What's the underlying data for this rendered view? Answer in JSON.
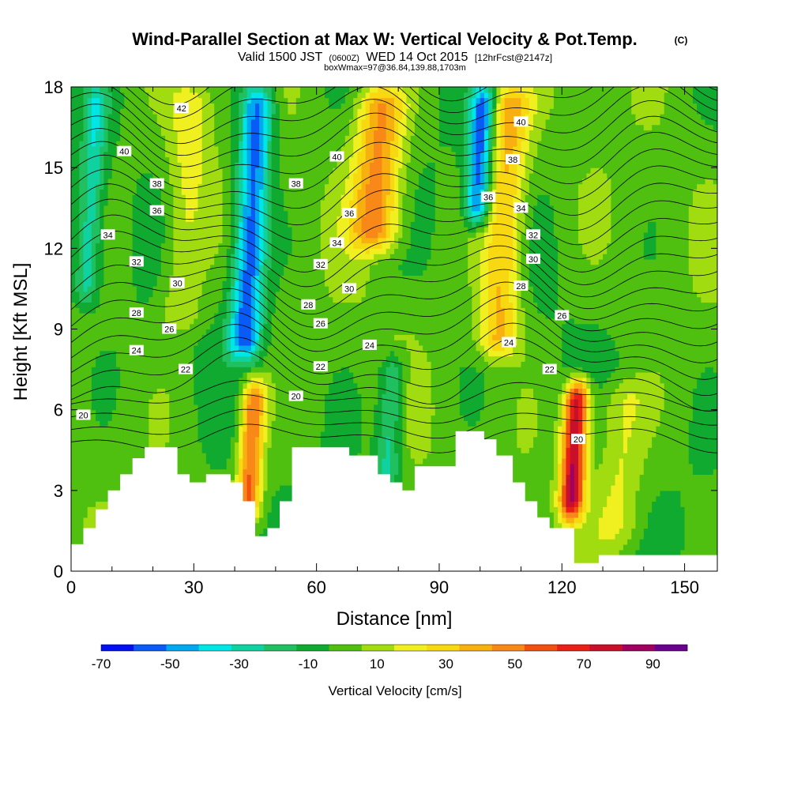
{
  "chart_data": {
    "type": "heatmap",
    "title": "Wind-Parallel Section at Max W: Vertical Velocity & Pot.Temp.",
    "title_mark": "(C)",
    "subtitle": {
      "valid": "Valid 1500 JST",
      "utc": "(0600Z)",
      "date": "WED 14 Oct 2015",
      "fcst": "[12hrFcst@2147z]"
    },
    "boxline": "boxWmax=97@36.84,139.88,1703m",
    "xlabel": "Distance [nm]",
    "ylabel": "Height [Kft MSL]",
    "xlim": [
      0,
      158
    ],
    "ylim": [
      0,
      18
    ],
    "xticks": [
      0,
      30,
      60,
      90,
      120,
      150
    ],
    "yticks": [
      0,
      3,
      6,
      9,
      12,
      15,
      18
    ],
    "colorbar": {
      "label": "Vertical Velocity [cm/s]",
      "levels": [
        -70,
        -60,
        -50,
        -40,
        -30,
        -20,
        -10,
        0,
        10,
        20,
        30,
        40,
        50,
        60,
        70,
        80,
        90,
        100
      ],
      "tick_labels": [
        "-70",
        "-50",
        "-30",
        "-10",
        "10",
        "30",
        "50",
        "70",
        "90"
      ],
      "tick_values": [
        -70,
        -50,
        -30,
        -10,
        10,
        30,
        50,
        70,
        90
      ],
      "colors": [
        "#0010f0",
        "#0a5af5",
        "#00a8f0",
        "#00e6e6",
        "#10d2a0",
        "#20c060",
        "#10aa30",
        "#50c010",
        "#a0dc10",
        "#f0f020",
        "#f8d810",
        "#f8b010",
        "#f88818",
        "#f05010",
        "#e82018",
        "#c8102a",
        "#a00060",
        "#6a0090"
      ]
    },
    "terrain_profile": {
      "x": [
        0,
        3,
        3,
        6,
        6,
        9,
        9,
        12,
        12,
        15,
        15,
        18,
        18,
        21,
        21,
        26,
        26,
        29,
        29,
        33,
        33,
        39,
        39,
        42,
        42,
        45,
        45,
        48,
        48,
        51,
        51,
        54,
        54,
        57,
        57,
        68,
        68,
        75,
        75,
        78,
        78,
        81,
        81,
        84,
        84,
        94,
        94,
        101,
        101,
        104,
        104,
        108,
        108,
        111,
        111,
        114,
        114,
        117,
        117,
        123,
        123,
        126,
        126,
        129,
        129,
        136,
        136,
        158
      ],
      "y": [
        1.0,
        1.0,
        1.6,
        1.6,
        2.3,
        2.3,
        3.0,
        3.0,
        3.6,
        3.6,
        4.2,
        4.2,
        4.6,
        4.6,
        4.6,
        4.6,
        3.6,
        3.6,
        3.3,
        3.3,
        3.6,
        3.6,
        3.3,
        3.3,
        2.6,
        2.6,
        1.3,
        1.3,
        1.6,
        1.6,
        2.6,
        2.6,
        4.6,
        4.6,
        4.6,
        4.6,
        4.3,
        4.3,
        3.6,
        3.6,
        3.3,
        3.3,
        3.0,
        3.0,
        3.9,
        3.9,
        5.2,
        5.2,
        4.9,
        4.9,
        4.3,
        4.3,
        3.3,
        3.3,
        2.6,
        2.6,
        2.0,
        2.0,
        1.6,
        1.6,
        0.3,
        0.3,
        0.3,
        0.3,
        0.6,
        0.6,
        0.6,
        0.6
      ]
    },
    "w_field_features": [
      {
        "x": 5,
        "y_from": 10,
        "y_to": 18,
        "w": -30,
        "halfwidth": 3
      },
      {
        "x": 44,
        "y_from": 8,
        "y_to": 18,
        "w": -60,
        "halfwidth": 4
      },
      {
        "x": 100,
        "y_from": 13,
        "y_to": 18,
        "w": -60,
        "halfwidth": 3
      },
      {
        "x": 78,
        "y_from": 3,
        "y_to": 8,
        "w": -30,
        "halfwidth": 3
      },
      {
        "x": 75,
        "y_from": 12,
        "y_to": 18,
        "w": 50,
        "halfwidth": 6
      },
      {
        "x": 106,
        "y_from": 8,
        "y_to": 18,
        "w": 40,
        "halfwidth": 5
      },
      {
        "x": 44,
        "y_from": 2,
        "y_to": 7,
        "w": 60,
        "halfwidth": 3
      },
      {
        "x": 123,
        "y_from": 2,
        "y_to": 7,
        "w": 90,
        "halfwidth": 3
      },
      {
        "x": 134,
        "y_from": 1,
        "y_to": 7,
        "w": 20,
        "halfwidth": 6
      },
      {
        "x": 28,
        "y_from": 9,
        "y_to": 18,
        "w": 20,
        "halfwidth": 5
      }
    ],
    "contour_labels": [
      {
        "text": "42",
        "x": 27,
        "y": 17.2
      },
      {
        "text": "40",
        "x": 13,
        "y": 15.6
      },
      {
        "text": "40",
        "x": 65,
        "y": 15.4
      },
      {
        "text": "40",
        "x": 110,
        "y": 16.7
      },
      {
        "text": "38",
        "x": 21,
        "y": 14.4
      },
      {
        "text": "38",
        "x": 55,
        "y": 14.4
      },
      {
        "text": "38",
        "x": 108,
        "y": 15.3
      },
      {
        "text": "36",
        "x": 21,
        "y": 13.4
      },
      {
        "text": "36",
        "x": 68,
        "y": 13.3
      },
      {
        "text": "36",
        "x": 102,
        "y": 13.9
      },
      {
        "text": "34",
        "x": 9,
        "y": 12.5
      },
      {
        "text": "34",
        "x": 65,
        "y": 12.2
      },
      {
        "text": "34",
        "x": 110,
        "y": 13.5
      },
      {
        "text": "32",
        "x": 16,
        "y": 11.5
      },
      {
        "text": "32",
        "x": 61,
        "y": 11.4
      },
      {
        "text": "32",
        "x": 113,
        "y": 12.5
      },
      {
        "text": "30",
        "x": 26,
        "y": 10.7
      },
      {
        "text": "30",
        "x": 68,
        "y": 10.5
      },
      {
        "text": "30",
        "x": 113,
        "y": 11.6
      },
      {
        "text": "28",
        "x": 16,
        "y": 9.6
      },
      {
        "text": "28",
        "x": 58,
        "y": 9.9
      },
      {
        "text": "28",
        "x": 110,
        "y": 10.6
      },
      {
        "text": "26",
        "x": 24,
        "y": 9.0
      },
      {
        "text": "26",
        "x": 61,
        "y": 9.2
      },
      {
        "text": "26",
        "x": 120,
        "y": 9.5
      },
      {
        "text": "24",
        "x": 16,
        "y": 8.2
      },
      {
        "text": "24",
        "x": 73,
        "y": 8.4
      },
      {
        "text": "24",
        "x": 107,
        "y": 8.5
      },
      {
        "text": "22",
        "x": 28,
        "y": 7.5
      },
      {
        "text": "22",
        "x": 61,
        "y": 7.6
      },
      {
        "text": "22",
        "x": 117,
        "y": 7.5
      },
      {
        "text": "20",
        "x": 3,
        "y": 5.8
      },
      {
        "text": "20",
        "x": 55,
        "y": 6.5
      },
      {
        "text": "20",
        "x": 124,
        "y": 4.9
      }
    ]
  }
}
